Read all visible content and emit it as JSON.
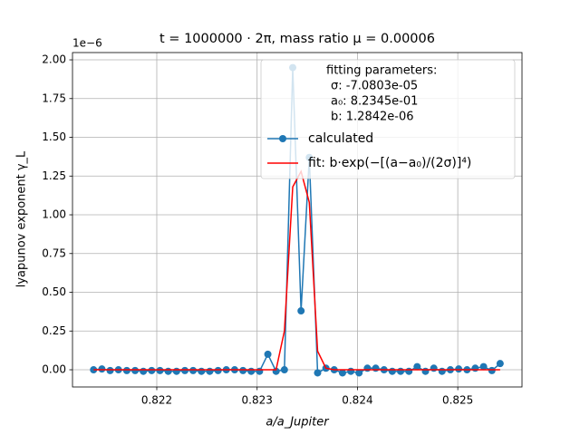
{
  "chart_data": {
    "type": "line",
    "title": "t = 1000000 · 2π, mass ratio μ = 0.00006",
    "xlabel": "a/a_Jupiter",
    "ylabel": "lyapunov exponent γ_L",
    "y_offset_label": "1e−6",
    "annotation": [
      "fitting parameters:",
      "σ: -7.0803e-05",
      "a₀: 8.2345e-01",
      "b: 1.2842e-06"
    ],
    "x": [
      0.82137,
      0.821453,
      0.821535,
      0.821618,
      0.821701,
      0.821784,
      0.821866,
      0.821949,
      0.822032,
      0.822114,
      0.822197,
      0.82228,
      0.822362,
      0.822445,
      0.822528,
      0.822611,
      0.822693,
      0.822776,
      0.822859,
      0.822941,
      0.823024,
      0.823107,
      0.823189,
      0.823272,
      0.823355,
      0.823438,
      0.82352,
      0.823603,
      0.823686,
      0.823768,
      0.823851,
      0.823934,
      0.824016,
      0.824099,
      0.824182,
      0.824265,
      0.824347,
      0.82443,
      0.824513,
      0.824595,
      0.824678,
      0.824761,
      0.824843,
      0.824926,
      0.825009,
      0.825092,
      0.825174,
      0.825257,
      0.82534,
      0.825422
    ],
    "series": [
      {
        "name": "calculated",
        "color": "#1f77b4",
        "marker": "o",
        "values": [
          0,
          0.005,
          -0.005,
          0,
          -0.005,
          -0.005,
          -0.01,
          -0.005,
          -0.005,
          -0.01,
          -0.01,
          -0.005,
          -0.005,
          -0.01,
          -0.01,
          -0.005,
          0,
          0,
          -0.005,
          -0.01,
          -0.01,
          0.1,
          -0.01,
          0,
          1.95,
          0.38,
          1.37,
          -0.02,
          0.01,
          0,
          -0.02,
          -0.01,
          -0.02,
          0.01,
          0.01,
          0,
          -0.01,
          -0.01,
          -0.01,
          0.02,
          -0.01,
          0.01,
          -0.01,
          0,
          0.005,
          0,
          0.01,
          0.02,
          -0.005,
          0.04
        ]
      },
      {
        "name": "fit: b·exp(−[(a−a₀)/(2σ)]⁴)",
        "color": "#ff0000",
        "values": [
          0,
          0,
          0,
          0,
          0,
          0,
          0,
          0,
          0,
          0,
          0,
          0,
          0,
          0,
          0,
          0,
          0,
          0,
          0,
          0,
          0,
          0,
          0,
          0.25,
          1.18,
          1.28,
          1.08,
          0.12,
          0.01,
          0,
          0,
          0,
          0,
          0,
          0,
          0,
          0,
          0,
          0,
          0,
          0,
          0,
          0,
          0,
          0,
          0,
          0,
          0,
          0,
          0
        ]
      }
    ],
    "xlim": [
      0.82116,
      0.82564
    ],
    "ylim": [
      -0.111,
      2.047
    ],
    "xticks": [
      0.822,
      0.823,
      0.824,
      0.825
    ],
    "yticks": [
      {
        "value": 0,
        "label": "0.00"
      },
      0.25,
      {
        "value": 0.5,
        "label": "0.50"
      },
      0.75,
      {
        "value": 1,
        "label": "1.00"
      },
      1.25,
      {
        "value": 1.5,
        "label": "1.50"
      },
      1.75,
      {
        "value": 2,
        "label": "2.00"
      }
    ],
    "grid": true,
    "legend": "upper right"
  }
}
